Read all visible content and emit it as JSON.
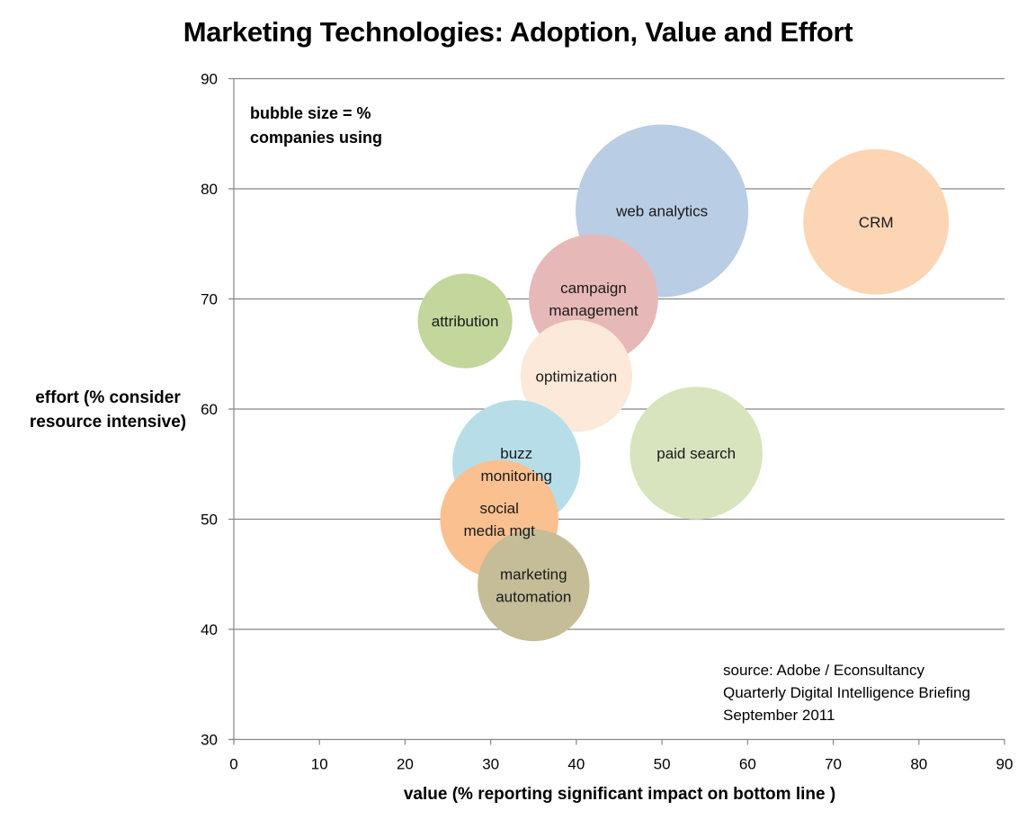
{
  "chart_data": {
    "type": "bubble",
    "title": "Marketing Technologies: Adoption, Value and Effort",
    "xlabel": "value (% reporting significant impact on bottom line )",
    "ylabel_lines": [
      "effort (% consider",
      "resource intensive)"
    ],
    "xlim": [
      0,
      90
    ],
    "ylim": [
      30,
      90
    ],
    "xticks": [
      0,
      10,
      20,
      30,
      40,
      50,
      60,
      70,
      80,
      90
    ],
    "yticks": [
      30,
      40,
      50,
      60,
      70,
      80,
      90
    ],
    "grid": "horizontal",
    "size_note_lines": [
      "bubble size = %",
      "companies using"
    ],
    "size_note_position": "top-left",
    "source_lines": [
      "source: Adobe /  Econsultancy",
      "Quarterly Digital Intelligence Briefing",
      "September 2011"
    ],
    "source_position": "bottom-right",
    "series": [
      {
        "name": "web analytics",
        "label_lines": [
          "web analytics"
        ],
        "x": 50,
        "y": 78,
        "size": 100,
        "color": "#b9cde5"
      },
      {
        "name": "CRM",
        "label_lines": [
          "CRM"
        ],
        "x": 75,
        "y": 77,
        "size": 71,
        "color": "#fcd5b5"
      },
      {
        "name": "campaign management",
        "label_lines": [
          "campaign",
          "management"
        ],
        "x": 42,
        "y": 70,
        "size": 56,
        "color": "#e6b9b8"
      },
      {
        "name": "attribution",
        "label_lines": [
          "attribution"
        ],
        "x": 27,
        "y": 68,
        "size": 30,
        "color": "#c3d69b"
      },
      {
        "name": "optimization",
        "label_lines": [
          "optimization"
        ],
        "x": 40,
        "y": 63,
        "size": 42,
        "color": "#fde9d9"
      },
      {
        "name": "paid search",
        "label_lines": [
          "paid search"
        ],
        "x": 54,
        "y": 56,
        "size": 59,
        "color": "#d7e4bd"
      },
      {
        "name": "buzz monitoring",
        "label_lines": [
          "buzz",
          "monitoring"
        ],
        "x": 33,
        "y": 55,
        "size": 55,
        "color": "#b7dee8"
      },
      {
        "name": "social media mgt",
        "label_lines": [
          "social",
          "media mgt"
        ],
        "x": 31,
        "y": 50,
        "size": 47,
        "color": "#fac090"
      },
      {
        "name": "marketing automation",
        "label_lines": [
          "marketing",
          "automation"
        ],
        "x": 35,
        "y": 44,
        "size": 42,
        "color": "#c4bd97"
      }
    ]
  }
}
